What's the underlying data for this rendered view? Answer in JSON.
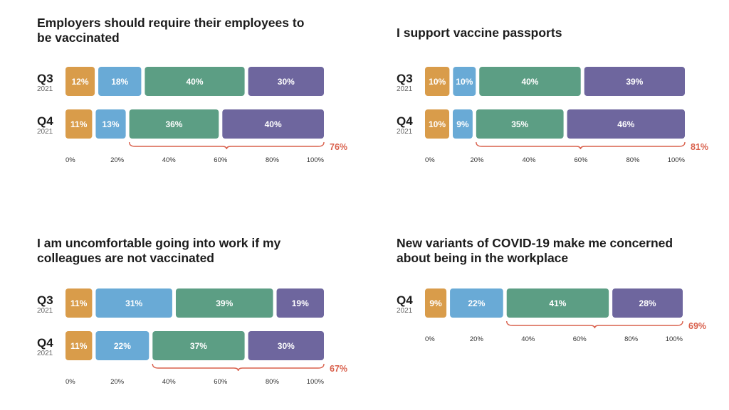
{
  "colors": {
    "strongly_disagree": "#d99c4a",
    "disagree": "#69aad6",
    "agree": "#5c9e84",
    "strongly_agree": "#6e669e",
    "brace": "#d9604c"
  },
  "chart_data": [
    {
      "type": "bar",
      "stacked": true,
      "orientation": "horizontal",
      "title": "Employers should require their employees to be vaccinated",
      "rows": [
        {
          "label": "Q3",
          "year": "2021",
          "values": [
            12,
            18,
            40,
            30
          ],
          "labels": [
            "12%",
            "18%",
            "40%",
            "30%"
          ]
        },
        {
          "label": "Q4",
          "year": "2021",
          "values": [
            11,
            13,
            36,
            40
          ],
          "labels": [
            "11%",
            "13%",
            "36%",
            "40%"
          ]
        }
      ],
      "brace_label": "76%",
      "xticks": [
        "0%",
        "20%",
        "40%",
        "60%",
        "80%",
        "100%"
      ],
      "xlim": [
        0,
        100
      ]
    },
    {
      "type": "bar",
      "stacked": true,
      "orientation": "horizontal",
      "title": "I support vaccine passports",
      "rows": [
        {
          "label": "Q3",
          "year": "2021",
          "values": [
            10,
            10,
            40,
            39
          ],
          "labels": [
            "10%",
            "10%",
            "40%",
            "39%"
          ]
        },
        {
          "label": "Q4",
          "year": "2021",
          "values": [
            10,
            9,
            35,
            46
          ],
          "labels": [
            "10%",
            "9%",
            "35%",
            "46%"
          ]
        }
      ],
      "brace_label": "81%",
      "xticks": [
        "0%",
        "20%",
        "40%",
        "60%",
        "80%",
        "100%"
      ],
      "xlim": [
        0,
        100
      ]
    },
    {
      "type": "bar",
      "stacked": true,
      "orientation": "horizontal",
      "title": "I am uncomfortable going into work if my colleagues are not vaccinated",
      "rows": [
        {
          "label": "Q3",
          "year": "2021",
          "values": [
            11,
            31,
            39,
            19
          ],
          "labels": [
            "11%",
            "31%",
            "39%",
            "19%"
          ]
        },
        {
          "label": "Q4",
          "year": "2021",
          "values": [
            11,
            22,
            37,
            30
          ],
          "labels": [
            "11%",
            "22%",
            "37%",
            "30%"
          ]
        }
      ],
      "brace_label": "67%",
      "xticks": [
        "0%",
        "20%",
        "40%",
        "60%",
        "80%",
        "100%"
      ],
      "xlim": [
        0,
        100
      ]
    },
    {
      "type": "bar",
      "stacked": true,
      "orientation": "horizontal",
      "title": "New variants of COVID-19 make me concerned about being in the workplace",
      "rows": [
        {
          "label": "Q4",
          "year": "2021",
          "values": [
            9,
            22,
            41,
            28
          ],
          "labels": [
            "9%",
            "22%",
            "41%",
            "28%"
          ]
        }
      ],
      "brace_label": "69%",
      "xticks": [
        "0%",
        "20%",
        "40%",
        "60%",
        "80%",
        "100%"
      ],
      "xlim": [
        0,
        100
      ]
    }
  ]
}
